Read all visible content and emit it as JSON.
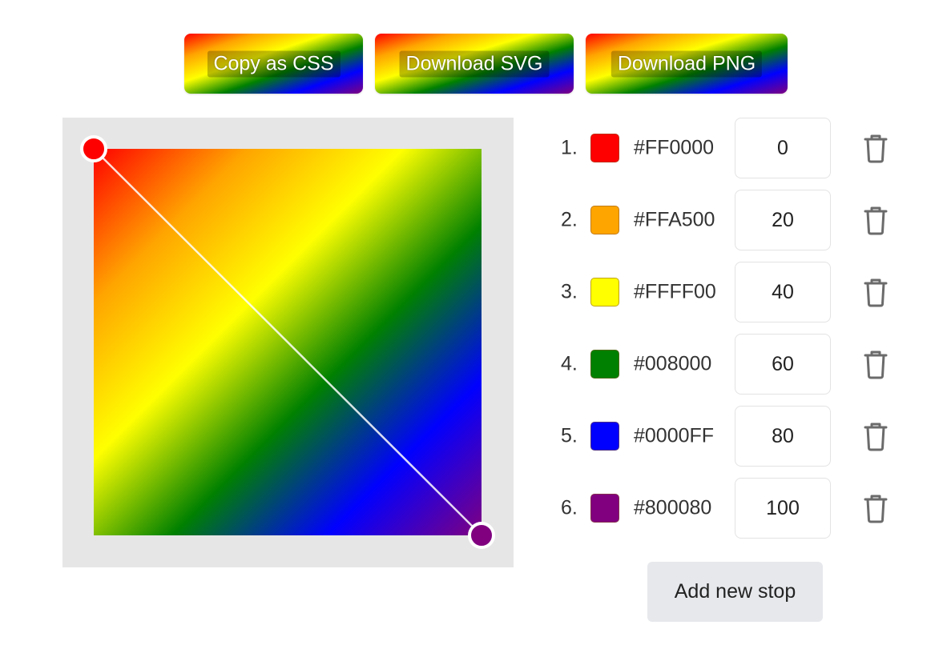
{
  "toolbar": {
    "copy_css_label": "Copy as CSS",
    "download_svg_label": "Download SVG",
    "download_png_label": "Download PNG"
  },
  "gradient": {
    "angle_description": "top-left to bottom-right",
    "start_handle_color": "#FF0000",
    "end_handle_color": "#800080"
  },
  "stops": [
    {
      "index": "1.",
      "hex": "#FF0000",
      "position": "0"
    },
    {
      "index": "2.",
      "hex": "#FFA500",
      "position": "20"
    },
    {
      "index": "3.",
      "hex": "#FFFF00",
      "position": "40"
    },
    {
      "index": "4.",
      "hex": "#008000",
      "position": "60"
    },
    {
      "index": "5.",
      "hex": "#0000FF",
      "position": "80"
    },
    {
      "index": "6.",
      "hex": "#800080",
      "position": "100"
    }
  ],
  "icons": {
    "delete": "trash-icon"
  },
  "add_stop_label": "Add new stop"
}
